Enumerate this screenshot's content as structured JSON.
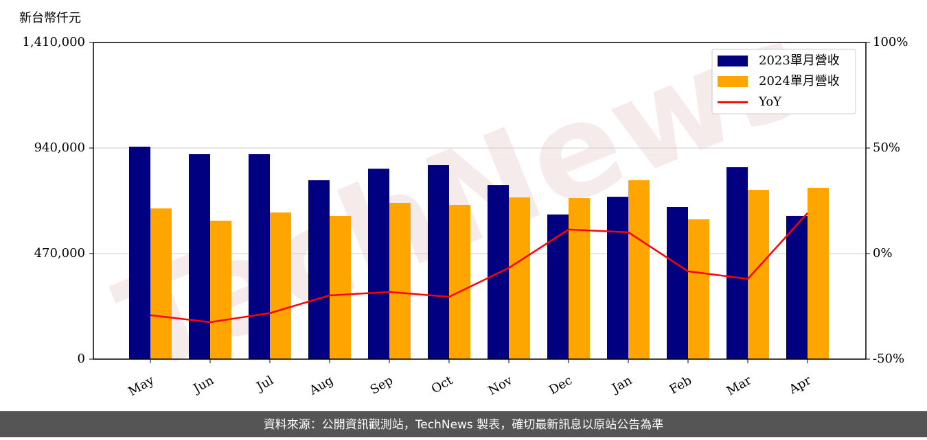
{
  "chart_data": {
    "type": "bar-line",
    "y_label": "新台幣仟元",
    "watermark": "TechNews",
    "footer": "資料來源：公開資訊觀測站，TechNews 製表，確切最新訊息以原站公告為準",
    "categories": [
      "May",
      "Jun",
      "Jul",
      "Aug",
      "Sep",
      "Oct",
      "Nov",
      "Dec",
      "Jan",
      "Feb",
      "Mar",
      "Apr"
    ],
    "series": [
      {
        "name": "2023單月營收",
        "type": "bar",
        "color": "#000080",
        "values": [
          946000,
          912500,
          912500,
          796500,
          848000,
          863700,
          775000,
          644000,
          723000,
          677500,
          854500,
          638000
        ]
      },
      {
        "name": "2024單月營收",
        "type": "bar",
        "color": "#ffa500",
        "values": [
          671000,
          616500,
          653000,
          638000,
          696000,
          686700,
          720000,
          717000,
          796500,
          622500,
          754000,
          763000
        ]
      },
      {
        "name": "YoY",
        "type": "line",
        "axis": "y2",
        "color": "#ff0000",
        "values": [
          -29.2,
          -32.5,
          -28.2,
          -19.8,
          -18.2,
          -20.5,
          -6.8,
          11.4,
          10.1,
          -8.4,
          -12,
          19.2
        ]
      }
    ],
    "ylim": [
      0,
      1410000
    ],
    "yticks": [
      0,
      {
        "value": 470000,
        "label": "470,000"
      },
      {
        "value": 940000,
        "label": "940,000"
      },
      {
        "value": 1410000,
        "label": "1,410,000"
      }
    ],
    "y2lim": [
      -50,
      100
    ],
    "y2ticks": [
      {
        "value": -50,
        "label": "-50%"
      },
      {
        "value": 0,
        "label": "0%"
      },
      {
        "value": 50,
        "label": "50%"
      },
      {
        "value": 100,
        "label": "100%"
      }
    ],
    "grid": true,
    "legend": "upper right"
  }
}
